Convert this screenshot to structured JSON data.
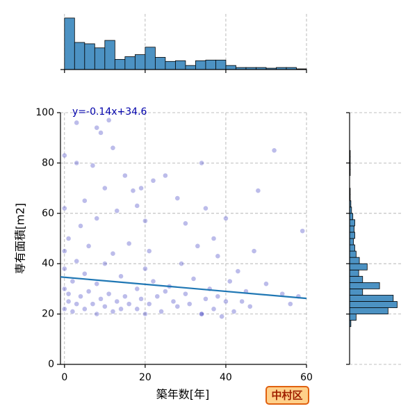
{
  "chart_data": {
    "type": "scatter",
    "xlabel": "築年数[年]",
    "ylabel": "専有面積[m2]",
    "badge": "中村区",
    "color": "#2222bb",
    "x": [
      0,
      0,
      0,
      0,
      0,
      0,
      1,
      1,
      1,
      2,
      2,
      3,
      3,
      3,
      4,
      4,
      5,
      5,
      5,
      6,
      6,
      7,
      7,
      8,
      8,
      8,
      9,
      9,
      10,
      10,
      10,
      11,
      11,
      12,
      12,
      13,
      13,
      14,
      14,
      15,
      15,
      16,
      16,
      17,
      18,
      18,
      19,
      19,
      20,
      20,
      20,
      21,
      21,
      22,
      22,
      23,
      24,
      25,
      25,
      26,
      27,
      28,
      28,
      29,
      30,
      30,
      31,
      32,
      33,
      34,
      34,
      35,
      35,
      36,
      37,
      37,
      38,
      38,
      39,
      40,
      40,
      41,
      42,
      43,
      44,
      45,
      46,
      47,
      48,
      50,
      52,
      54,
      56,
      58,
      59,
      3,
      8,
      12,
      18,
      34
    ],
    "y": [
      22,
      30,
      45,
      62,
      83,
      38,
      25,
      50,
      28,
      21,
      33,
      80,
      24,
      41,
      27,
      55,
      22,
      36,
      65,
      29,
      47,
      24,
      79,
      20,
      32,
      58,
      92,
      26,
      23,
      40,
      70,
      97,
      28,
      21,
      44,
      25,
      61,
      22,
      35,
      27,
      75,
      24,
      48,
      69,
      22,
      30,
      70,
      26,
      20,
      38,
      57,
      24,
      45,
      33,
      73,
      27,
      21,
      29,
      75,
      31,
      25,
      66,
      23,
      40,
      28,
      56,
      24,
      34,
      47,
      20,
      80,
      26,
      62,
      30,
      22,
      50,
      27,
      43,
      19,
      25,
      58,
      33,
      21,
      37,
      25,
      29,
      23,
      45,
      69,
      32,
      85,
      28,
      24,
      27,
      53,
      96,
      94,
      86,
      63,
      20
    ],
    "xlim": [
      -1,
      60
    ],
    "ylim": [
      0,
      100
    ],
    "xticks": [
      0,
      20,
      40,
      60
    ],
    "yticks": [
      0,
      20,
      40,
      60,
      80,
      100
    ],
    "grid": true,
    "fit": {
      "label": "y=-0.14x+34.6",
      "slope": -0.14,
      "intercept": 34.6,
      "color": "#1f77b4"
    },
    "top_hist": {
      "color": "#4c92c3",
      "bins": [
        0,
        2.5,
        5,
        7.5,
        10,
        12.5,
        15,
        17.5,
        20,
        22.5,
        25,
        27.5,
        30,
        32.5,
        35,
        37.5,
        40,
        42.5,
        45,
        47.5,
        50,
        52.5,
        55,
        57.5,
        60
      ],
      "counts": [
        76,
        40,
        38,
        32,
        43,
        15,
        19,
        22,
        33,
        18,
        12,
        13,
        6,
        13,
        14,
        14,
        6,
        3,
        3,
        3,
        2,
        3,
        3,
        1
      ],
      "ylim": [
        0,
        80
      ]
    },
    "right_hist": {
      "color": "#4c92c3",
      "bins": [
        15,
        17.5,
        20,
        22.5,
        25,
        27.5,
        30,
        32.5,
        35,
        37.5,
        40,
        42.5,
        45,
        47.5,
        50,
        52.5,
        55,
        57.5,
        60,
        62.5,
        65,
        67.5,
        70,
        72.5,
        75,
        77.5,
        80,
        82.5,
        85
      ],
      "counts": [
        2,
        10,
        59,
        73,
        67,
        20,
        46,
        20,
        14,
        27,
        15,
        10,
        8,
        6,
        8,
        7,
        8,
        5,
        3,
        2,
        1,
        1,
        0,
        0,
        1,
        1,
        1,
        1
      ],
      "xlim": [
        0,
        80
      ]
    }
  }
}
